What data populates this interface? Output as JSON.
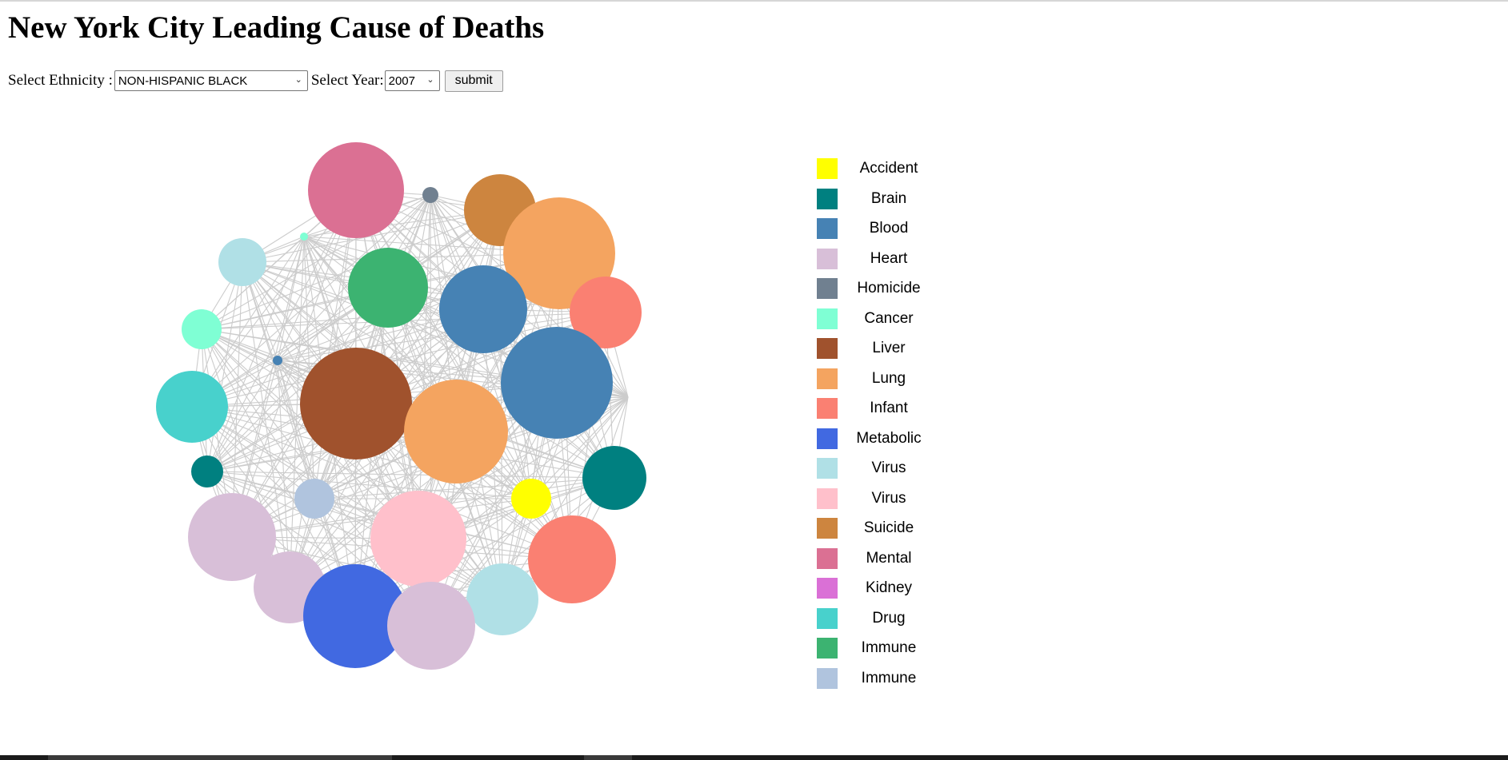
{
  "page": {
    "title": "New York City Leading Cause of Deaths"
  },
  "controls": {
    "ethnicity_label": "Select Ethnicity :",
    "ethnicity_value": "NON-HISPANIC BLACK",
    "year_label": "Select Year:",
    "year_value": "2007",
    "submit_label": "submit"
  },
  "legend": [
    {
      "label": "Accident",
      "color": "#ffff00"
    },
    {
      "label": "Brain",
      "color": "#008080"
    },
    {
      "label": "Blood",
      "color": "#4682b4"
    },
    {
      "label": "Heart",
      "color": "#d8bfd8"
    },
    {
      "label": "Homicide",
      "color": "#708090"
    },
    {
      "label": "Cancer",
      "color": "#7fffd4"
    },
    {
      "label": "Liver",
      "color": "#a0522d"
    },
    {
      "label": "Lung",
      "color": "#f4a460"
    },
    {
      "label": "Infant",
      "color": "#fa8072"
    },
    {
      "label": "Metabolic",
      "color": "#4169e1"
    },
    {
      "label": "Virus",
      "color": "#b0e0e6"
    },
    {
      "label": "Virus",
      "color": "#ffc0cb"
    },
    {
      "label": "Suicide",
      "color": "#cd853f"
    },
    {
      "label": "Mental",
      "color": "#db7093"
    },
    {
      "label": "Kidney",
      "color": "#da70d6"
    },
    {
      "label": "Drug",
      "color": "#48d1cc"
    },
    {
      "label": "Immune",
      "color": "#3cb371"
    },
    {
      "label": "Immune",
      "color": "#b0c4de"
    }
  ],
  "edge_color": "#cccccc",
  "nodes": [
    {
      "cause": "Mental",
      "color": "#db7093"
    },
    {
      "cause": "Homicide",
      "color": "#708090"
    },
    {
      "cause": "Suicide",
      "color": "#cd853f"
    },
    {
      "cause": "Lung",
      "color": "#f4a460"
    },
    {
      "cause": "Cancer",
      "color": "#7fffd4"
    },
    {
      "cause": "Virus",
      "color": "#b0e0e6"
    },
    {
      "cause": "Immune",
      "color": "#3cb371"
    },
    {
      "cause": "Blood",
      "color": "#4682b4"
    },
    {
      "cause": "Infant",
      "color": "#fa8072"
    },
    {
      "cause": "Cancer",
      "color": "#7fffd4"
    },
    {
      "cause": "Blood",
      "color": "#4682b4"
    },
    {
      "cause": "Drug",
      "color": "#48d1cc"
    },
    {
      "cause": "Liver",
      "color": "#a0522d"
    },
    {
      "cause": "Lung",
      "color": "#f4a460"
    },
    {
      "cause": "Blood",
      "color": "#4682b4"
    },
    {
      "cause": "Brain",
      "color": "#008080"
    },
    {
      "cause": "Brain",
      "color": "#008080"
    },
    {
      "cause": "Immune",
      "color": "#b0c4de"
    },
    {
      "cause": "Accident",
      "color": "#ffff00"
    },
    {
      "cause": "Heart",
      "color": "#d8bfd8"
    },
    {
      "cause": "Virus",
      "color": "#ffc0cb"
    },
    {
      "cause": "Infant",
      "color": "#fa8072"
    },
    {
      "cause": "Heart",
      "color": "#d8bfd8"
    },
    {
      "cause": "Virus",
      "color": "#b0e0e6"
    },
    {
      "cause": "Metabolic",
      "color": "#4169e1"
    },
    {
      "cause": "Heart",
      "color": "#d8bfd8"
    }
  ]
}
